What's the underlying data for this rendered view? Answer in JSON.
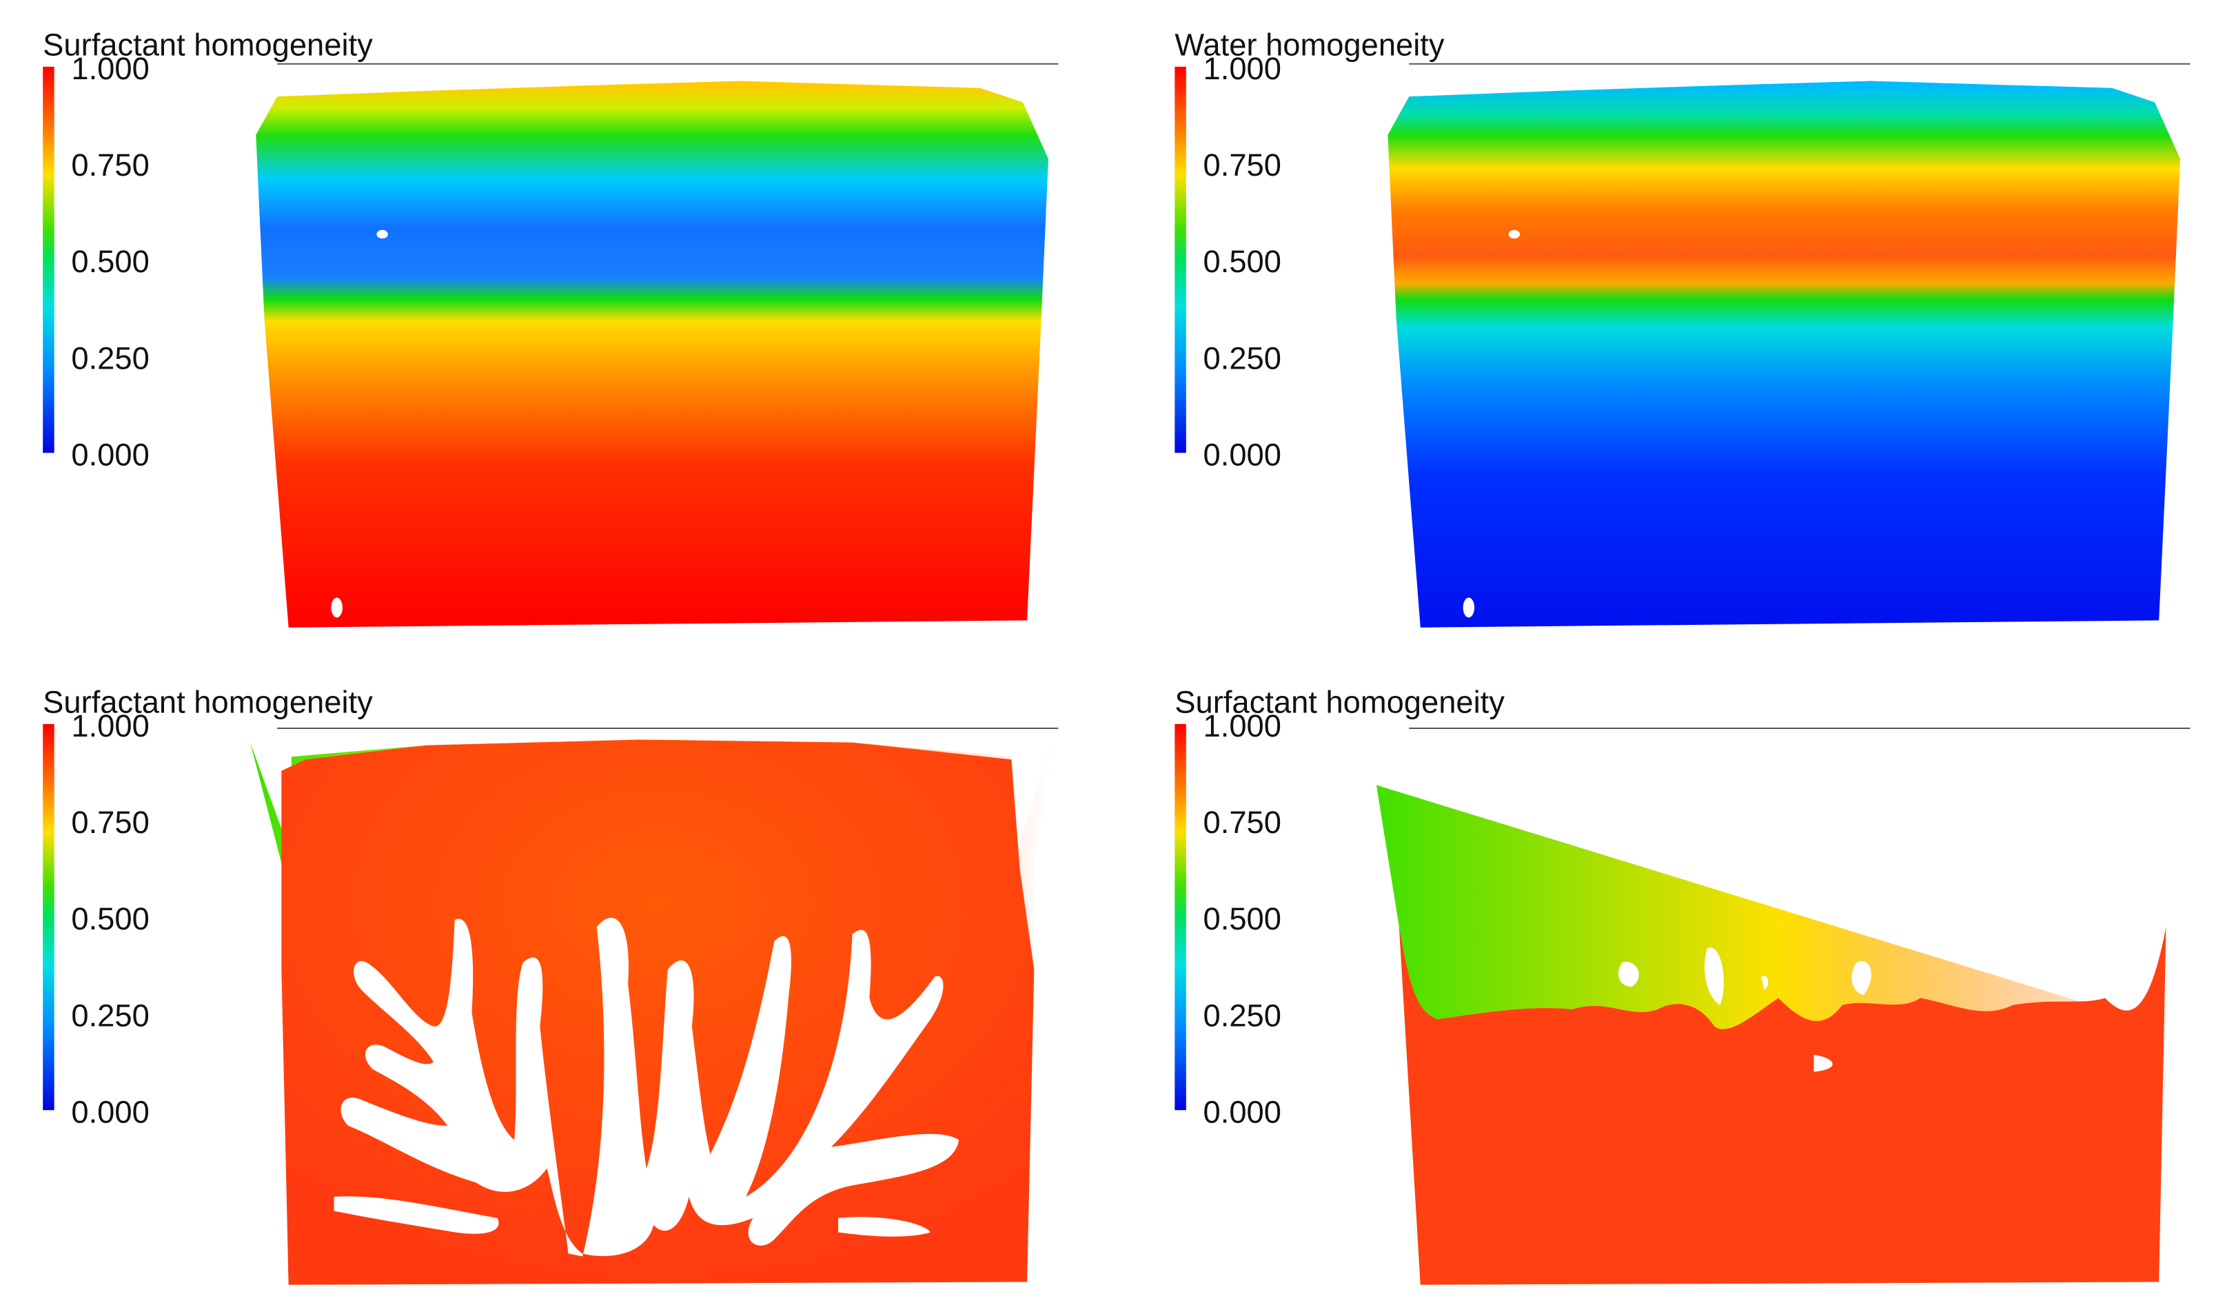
{
  "panels": [
    {
      "title": "Surfactant homogeneity",
      "colorbar_ticks": [
        {
          "value": 1,
          "label": "1.000"
        },
        {
          "value": 0.75,
          "label": "0.750"
        },
        {
          "value": 0.5,
          "label": "0.500"
        },
        {
          "value": 0.25,
          "label": "0.250"
        },
        {
          "value": 0,
          "label": "0.000"
        }
      ]
    },
    {
      "title": "Water homogeneity",
      "colorbar_ticks": [
        {
          "value": 1,
          "label": "1.000"
        },
        {
          "value": 0.75,
          "label": "0.750"
        },
        {
          "value": 0.5,
          "label": "0.500"
        },
        {
          "value": 0.25,
          "label": "0.250"
        },
        {
          "value": 0,
          "label": "0.000"
        }
      ]
    },
    {
      "title": "Surfactant homogeneity",
      "colorbar_ticks": [
        {
          "value": 1,
          "label": "1.000"
        },
        {
          "value": 0.75,
          "label": "0.750"
        },
        {
          "value": 0.5,
          "label": "0.500"
        },
        {
          "value": 0.25,
          "label": "0.250"
        },
        {
          "value": 0,
          "label": "0.000"
        }
      ]
    },
    {
      "title": "Surfactant homogeneity",
      "colorbar_ticks": [
        {
          "value": 1,
          "label": "1.000"
        },
        {
          "value": 0.75,
          "label": "0.750"
        },
        {
          "value": 0.5,
          "label": "0.500"
        },
        {
          "value": 0.25,
          "label": "0.250"
        },
        {
          "value": 0,
          "label": "0.000"
        }
      ]
    }
  ]
}
